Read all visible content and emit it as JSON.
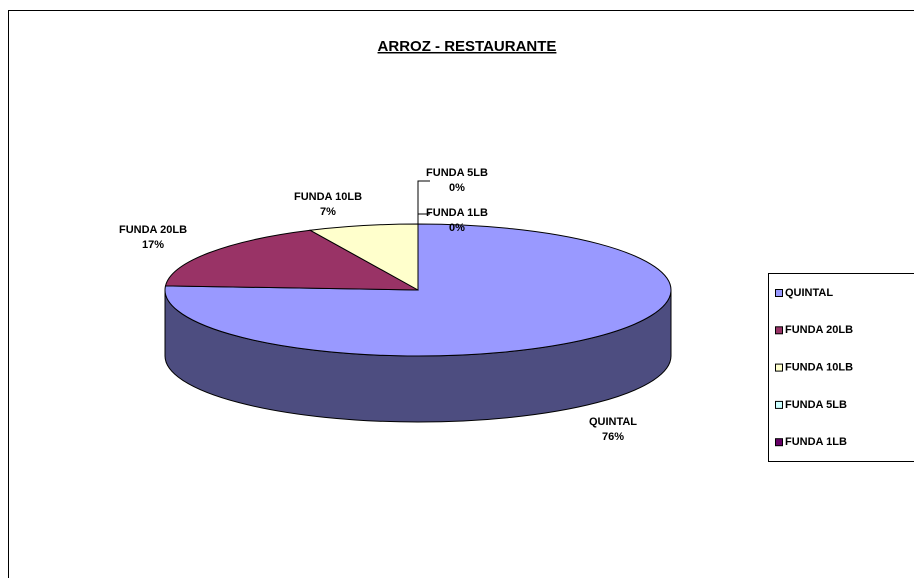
{
  "chart_data": {
    "type": "pie3d",
    "title": "ARROZ - RESTAURANTE",
    "categories": [
      "QUINTAL",
      "FUNDA 20LB",
      "FUNDA 10LB",
      "FUNDA 5LB",
      "FUNDA 1LB"
    ],
    "values": [
      76,
      17,
      7,
      0,
      0
    ],
    "value_labels": [
      "76%",
      "17%",
      "7%",
      "0%",
      "0%"
    ],
    "colors": [
      "#9999ff",
      "#993366",
      "#ffffcc",
      "#ccffff",
      "#660066"
    ],
    "legend": "right"
  }
}
